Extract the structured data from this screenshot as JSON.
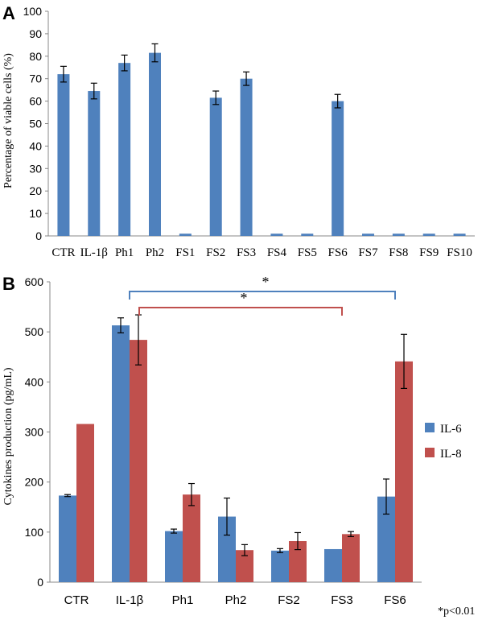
{
  "chart_data": [
    {
      "panel": "A",
      "type": "bar",
      "ylabel": "Percentage of viable cells (%)",
      "ylim": [
        0,
        100
      ],
      "yticks": [
        0,
        10,
        20,
        30,
        40,
        50,
        60,
        70,
        80,
        90,
        100
      ],
      "categories": [
        "CTR",
        "IL-1β",
        "Ph1",
        "Ph2",
        "FS1",
        "FS2",
        "FS3",
        "FS4",
        "FS5",
        "FS6",
        "FS7",
        "FS8",
        "FS9",
        "FS10"
      ],
      "values": [
        72,
        64.5,
        77,
        81.5,
        1,
        61.5,
        70,
        1,
        1,
        60,
        1,
        1,
        1,
        1
      ],
      "errors": [
        3.5,
        3.5,
        3.5,
        4,
        0,
        3,
        3,
        0,
        0,
        3,
        0,
        0,
        0,
        0
      ],
      "color": "#4f81bd",
      "grid": false
    },
    {
      "panel": "B",
      "type": "bar",
      "ylabel": "Cytokines production (pg/mL)",
      "ylim": [
        0,
        600
      ],
      "yticks": [
        0,
        100,
        200,
        300,
        400,
        500,
        600
      ],
      "categories": [
        "CTR",
        "IL-1β",
        "Ph1",
        "Ph2",
        "FS2",
        "FS3",
        "FS6"
      ],
      "series": [
        {
          "name": "IL-6",
          "color": "#4f81bd",
          "values": [
            173,
            513,
            102,
            131,
            63,
            66,
            171
          ],
          "errors": [
            2,
            15,
            4,
            37,
            4,
            0,
            35
          ]
        },
        {
          "name": "IL-8",
          "color": "#c0504d",
          "values": [
            316,
            484,
            175,
            64,
            82,
            96,
            441
          ],
          "errors": [
            0,
            50,
            22,
            11,
            17,
            5,
            54
          ]
        }
      ],
      "legend": "right",
      "grid": false,
      "annotations": [
        {
          "text": "*",
          "from": "IL-1β",
          "to": "FS6",
          "color": "#4f81bd"
        },
        {
          "text": "*",
          "from": "IL-1β",
          "to": "FS3",
          "color": "#c0504d"
        }
      ],
      "note": "*p<0.01"
    }
  ]
}
